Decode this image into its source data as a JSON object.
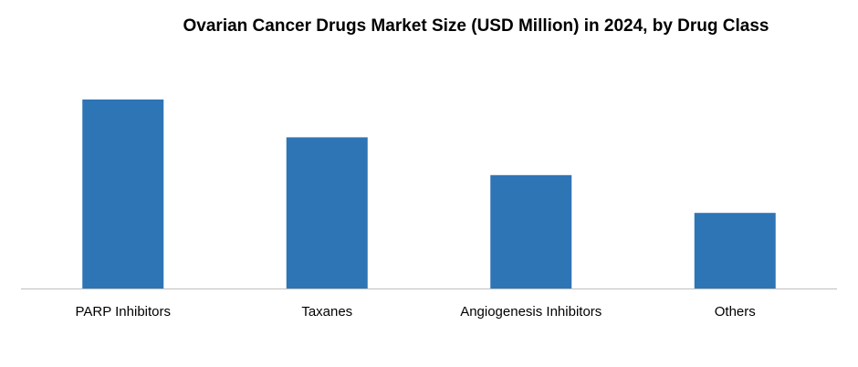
{
  "chart_data": {
    "type": "bar",
    "title": "Ovarian Cancer Drugs Market Size (USD Million) in 2024, by Drug Class",
    "categories": [
      "PARP Inhibitors",
      "Taxanes",
      "Angiogenesis Inhibitors",
      "Others"
    ],
    "values": [
      100,
      80,
      60,
      40
    ],
    "ylim": [
      0,
      100
    ],
    "xlabel": "",
    "ylabel": "",
    "grid": false,
    "legend": "none",
    "colors": {
      "bar": "#2E75B6",
      "axis": "#BFBFBF",
      "text": "#000000"
    }
  }
}
